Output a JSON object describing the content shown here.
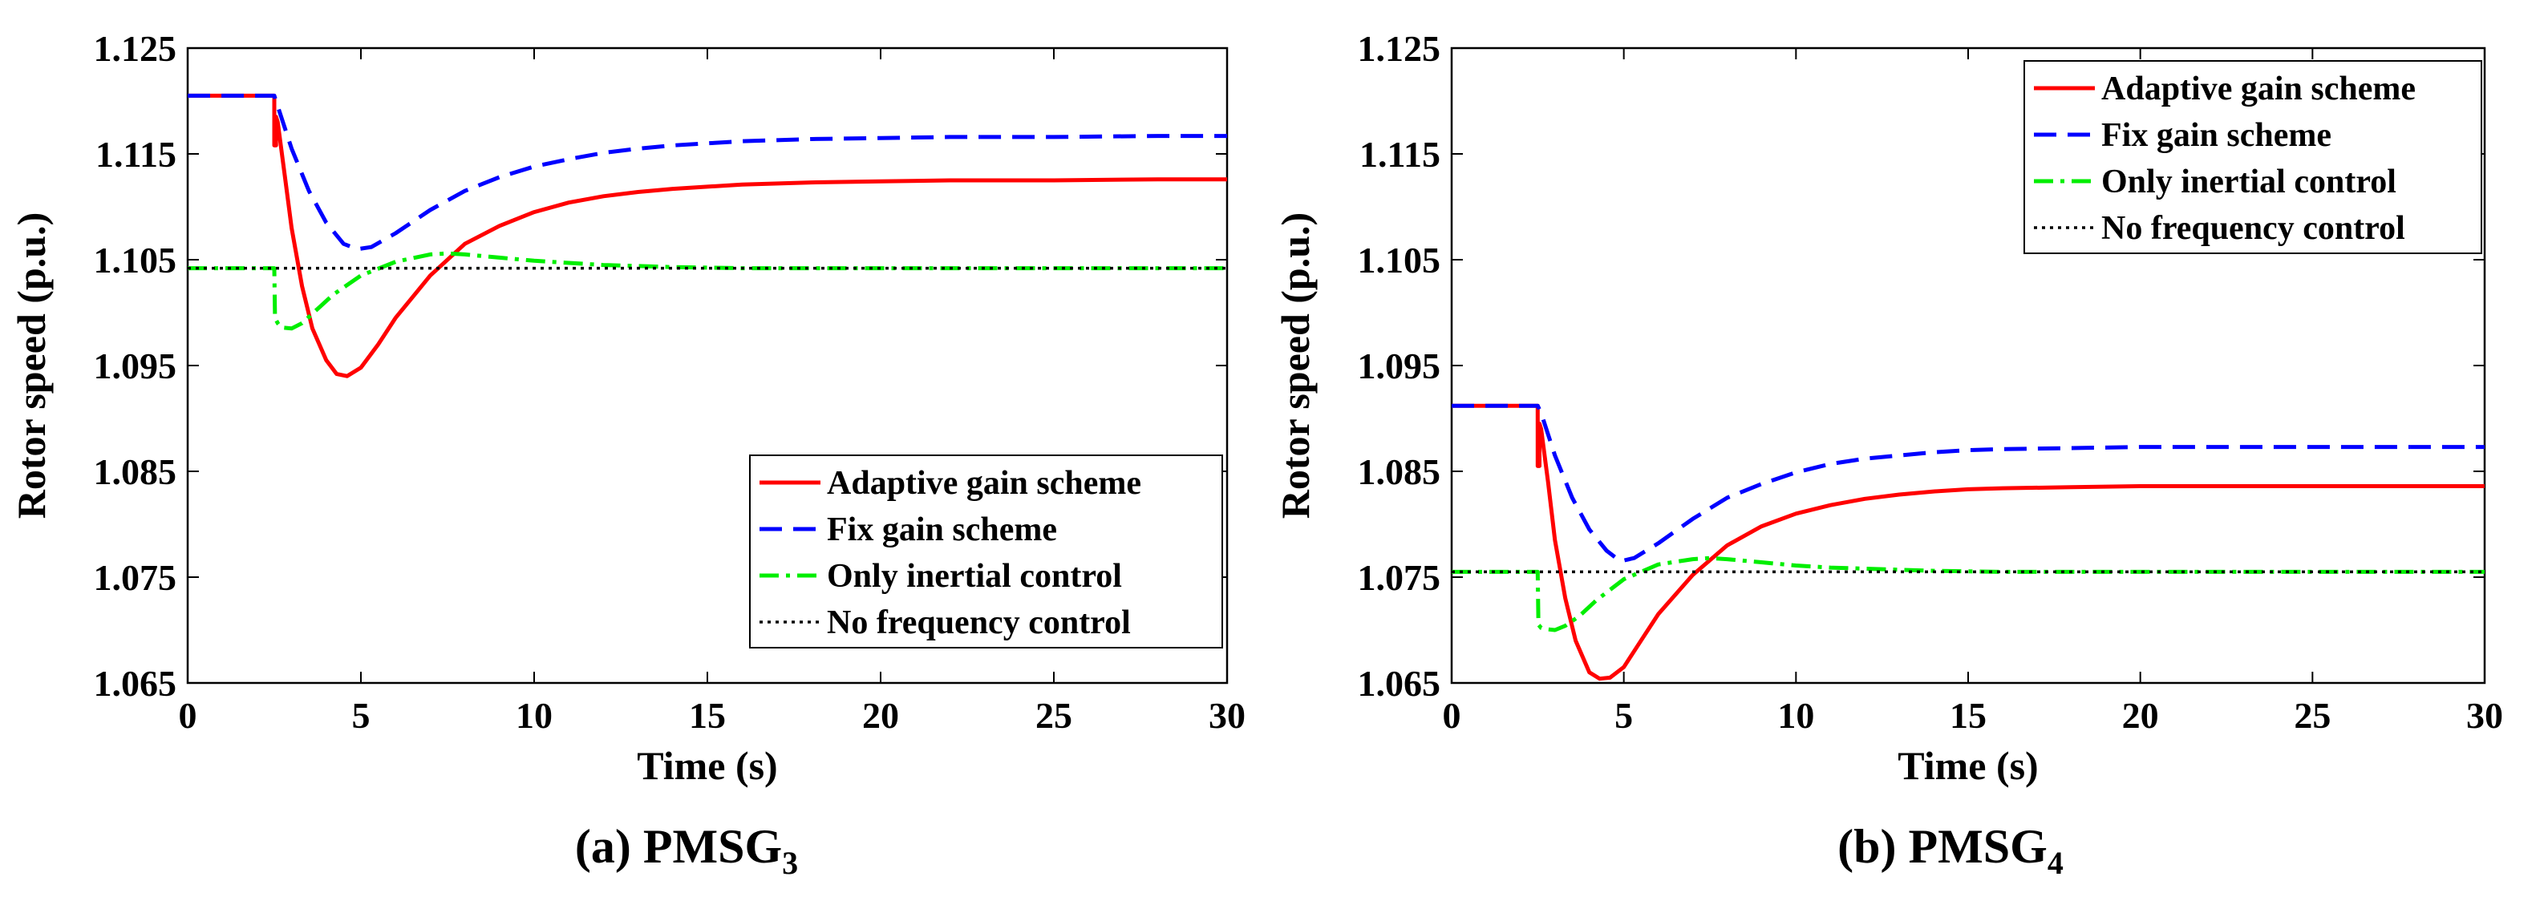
{
  "chart_data": [
    {
      "type": "line",
      "caption": {
        "prefix": "(a) PMSG",
        "subscript": "3"
      },
      "xlabel": "Time (s)",
      "ylabel": "Rotor speed (p.u.)",
      "xlim": [
        0,
        30
      ],
      "ylim": [
        1.065,
        1.125
      ],
      "xticks": [
        0,
        5,
        10,
        15,
        20,
        25,
        30
      ],
      "yticks": [
        1.065,
        1.075,
        1.085,
        1.095,
        1.105,
        1.115,
        1.125
      ],
      "xtick_labels": [
        "0",
        "5",
        "10",
        "15",
        "20",
        "25",
        "30"
      ],
      "ytick_labels": [
        "1.065",
        "1.075",
        "1.085",
        "1.095",
        "1.105",
        "1.115",
        "1.125"
      ],
      "legend_position": "bottom-right",
      "series": [
        {
          "name": "Adaptive gain scheme",
          "color": "#ff0000",
          "dash": "solid",
          "x": [
            0,
            2.5,
            2.5,
            2.55,
            2.55,
            2.6,
            2.8,
            3.0,
            3.3,
            3.6,
            4.0,
            4.3,
            4.6,
            5.0,
            5.5,
            6,
            7,
            8,
            9,
            10,
            11,
            12,
            13,
            14,
            15,
            16,
            18,
            20,
            22,
            25,
            28,
            30
          ],
          "values": [
            1.1205,
            1.1205,
            1.1158,
            1.1158,
            1.1185,
            1.118,
            1.113,
            1.108,
            1.1025,
            1.0985,
            1.0955,
            1.0942,
            1.094,
            1.0948,
            1.097,
            1.0995,
            1.1035,
            1.1065,
            1.1082,
            1.1095,
            1.1104,
            1.111,
            1.1114,
            1.1117,
            1.1119,
            1.1121,
            1.1123,
            1.1124,
            1.1125,
            1.1125,
            1.1126,
            1.1126
          ]
        },
        {
          "name": "Fix gain scheme",
          "color": "#0000ff",
          "dash": "dashed",
          "x": [
            0,
            2.5,
            2.6,
            3.0,
            3.5,
            4.0,
            4.5,
            4.9,
            5.3,
            6,
            7,
            8,
            9,
            10,
            11,
            12,
            13,
            14,
            15,
            16,
            18,
            20,
            22,
            25,
            28,
            30
          ],
          "values": [
            1.1205,
            1.1205,
            1.1195,
            1.1155,
            1.1115,
            1.1085,
            1.1065,
            1.106,
            1.1062,
            1.1075,
            1.1097,
            1.1115,
            1.1128,
            1.1138,
            1.1145,
            1.1151,
            1.1155,
            1.1158,
            1.116,
            1.1162,
            1.1164,
            1.1165,
            1.1166,
            1.1166,
            1.1167,
            1.1167
          ]
        },
        {
          "name": "Only inertial control",
          "color": "#00ee00",
          "dash": "dashdot",
          "x": [
            0,
            2.5,
            2.52,
            2.6,
            2.7,
            3.0,
            3.3,
            3.7,
            4.2,
            5,
            6,
            7,
            7.5,
            8,
            9,
            10,
            11,
            12,
            13,
            14,
            16,
            18,
            20,
            25,
            30
          ],
          "values": [
            1.1042,
            1.1042,
            1.0995,
            1.099,
            1.0986,
            1.0985,
            1.099,
            1.1002,
            1.1017,
            1.1035,
            1.1048,
            1.1055,
            1.1056,
            1.1055,
            1.1052,
            1.1049,
            1.1047,
            1.1045,
            1.1044,
            1.1043,
            1.1042,
            1.1042,
            1.1042,
            1.1042,
            1.1042
          ]
        },
        {
          "name": "No frequency control",
          "color": "#000000",
          "dash": "dotted",
          "x": [
            0,
            30
          ],
          "values": [
            1.1042,
            1.1042
          ]
        }
      ]
    },
    {
      "type": "line",
      "caption": {
        "prefix": "(b) PMSG",
        "subscript": "4"
      },
      "xlabel": "Time (s)",
      "ylabel": "Rotor speed (p.u.)",
      "xlim": [
        0,
        30
      ],
      "ylim": [
        1.065,
        1.125
      ],
      "xticks": [
        0,
        5,
        10,
        15,
        20,
        25,
        30
      ],
      "yticks": [
        1.065,
        1.075,
        1.085,
        1.095,
        1.105,
        1.115,
        1.125
      ],
      "xtick_labels": [
        "0",
        "5",
        "10",
        "15",
        "20",
        "25",
        "30"
      ],
      "ytick_labels": [
        "1.065",
        "1.075",
        "1.085",
        "1.095",
        "1.105",
        "1.115",
        "1.125"
      ],
      "legend_position": "top-right",
      "series": [
        {
          "name": "Adaptive gain scheme",
          "color": "#ff0000",
          "dash": "solid",
          "x": [
            0,
            2.5,
            2.5,
            2.55,
            2.55,
            2.6,
            2.8,
            3.0,
            3.3,
            3.6,
            4.0,
            4.3,
            4.6,
            5.0,
            5.5,
            6,
            7,
            8,
            9,
            10,
            11,
            12,
            13,
            14,
            15,
            16,
            18,
            20,
            22,
            25,
            28,
            30
          ],
          "values": [
            1.0912,
            1.0912,
            1.0855,
            1.0855,
            1.0895,
            1.089,
            1.084,
            1.0785,
            1.073,
            1.069,
            1.066,
            1.0654,
            1.0655,
            1.0665,
            1.069,
            1.0715,
            1.0752,
            1.078,
            1.0798,
            1.081,
            1.0818,
            1.0824,
            1.0828,
            1.0831,
            1.0833,
            1.0834,
            1.0835,
            1.0836,
            1.0836,
            1.0836,
            1.0836,
            1.0836
          ]
        },
        {
          "name": "Fix gain scheme",
          "color": "#0000ff",
          "dash": "dashed",
          "x": [
            0,
            2.5,
            2.6,
            3.0,
            3.5,
            4.0,
            4.5,
            4.9,
            5.3,
            6,
            7,
            8,
            9,
            10,
            11,
            12,
            13,
            14,
            15,
            16,
            18,
            20,
            22,
            25,
            28,
            30
          ],
          "values": [
            1.0912,
            1.0912,
            1.0905,
            1.0865,
            1.0825,
            1.0795,
            1.0775,
            1.0765,
            1.0768,
            1.0782,
            1.0805,
            1.0825,
            1.0838,
            1.0849,
            1.0857,
            1.0862,
            1.0865,
            1.0868,
            1.087,
            1.0871,
            1.0872,
            1.0873,
            1.0873,
            1.0873,
            1.0873,
            1.0873
          ]
        },
        {
          "name": "Only inertial control",
          "color": "#00ee00",
          "dash": "dashdot",
          "x": [
            0,
            2.5,
            2.52,
            2.6,
            2.7,
            3.0,
            3.3,
            3.7,
            4.2,
            5,
            6,
            7,
            7.5,
            8,
            9,
            10,
            11,
            12,
            13,
            14,
            16,
            18,
            20,
            25,
            30
          ],
          "values": [
            1.0755,
            1.0755,
            1.0705,
            1.0702,
            1.0701,
            1.07,
            1.0704,
            1.0713,
            1.0728,
            1.0748,
            1.0762,
            1.0767,
            1.0768,
            1.0767,
            1.0764,
            1.0761,
            1.0759,
            1.0758,
            1.0757,
            1.0756,
            1.0755,
            1.0755,
            1.0755,
            1.0755,
            1.0755
          ]
        },
        {
          "name": "No frequency control",
          "color": "#000000",
          "dash": "dotted",
          "x": [
            0,
            30
          ],
          "values": [
            1.0755,
            1.0755
          ]
        }
      ]
    }
  ]
}
